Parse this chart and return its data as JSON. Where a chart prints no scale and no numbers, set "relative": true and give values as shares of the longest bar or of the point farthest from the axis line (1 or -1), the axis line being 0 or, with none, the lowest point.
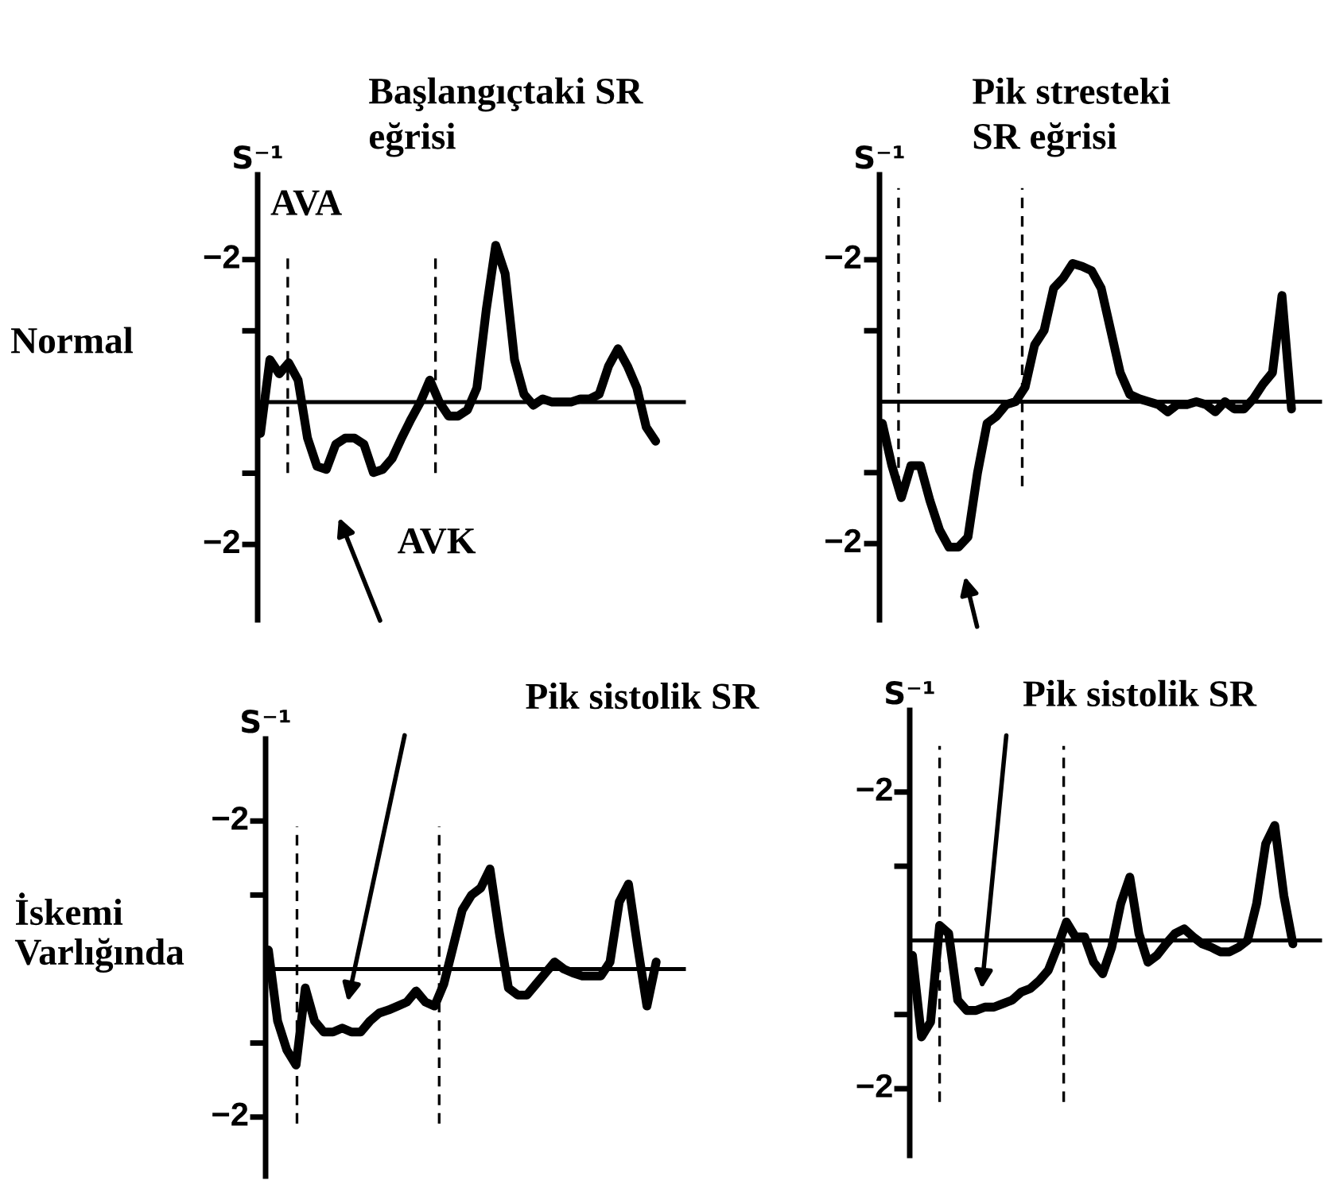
{
  "chart_data": [
    {
      "type": "line",
      "relative": true,
      "title": "Başlangıçtaki SR\neğrisi",
      "ylabel": "S⁻¹",
      "color": "#000000",
      "line_style": "solid",
      "categories": [
        null,
        null,
        null,
        null,
        null,
        null,
        null,
        null,
        null,
        null,
        null,
        null,
        null,
        null,
        null,
        null,
        null,
        null,
        null,
        null,
        null,
        null,
        null,
        null,
        null,
        null,
        null,
        null,
        null,
        null,
        null,
        null,
        null,
        null,
        null,
        null,
        null,
        null,
        null,
        null,
        null,
        null,
        null
      ],
      "values": [
        -0.2,
        0.27,
        0.18,
        0.25,
        0.14,
        -0.23,
        -0.41,
        -0.43,
        -0.27,
        -0.23,
        -0.23,
        -0.27,
        -0.45,
        -0.43,
        -0.36,
        -0.23,
        -0.11,
        0,
        0.14,
        0,
        -0.09,
        -0.09,
        -0.05,
        0.09,
        0.59,
        1,
        0.82,
        0.27,
        0.05,
        -0.02,
        0.02,
        0,
        0,
        0,
        0.02,
        0.02,
        0.05,
        0.23,
        0.34,
        0.23,
        0.09,
        -0.16,
        -0.25
      ],
      "annotations": [
        "−2",
        "−2",
        "AVA",
        "AVK",
        "Normal"
      ]
    },
    {
      "type": "line",
      "relative": true,
      "title": "Pik stresteki\nSR eğrisi",
      "ylabel": "S⁻¹",
      "color": "#000000",
      "line_style": "solid",
      "categories": [
        null,
        null,
        null,
        null,
        null,
        null,
        null,
        null,
        null,
        null,
        null,
        null,
        null,
        null,
        null,
        null,
        null,
        null,
        null,
        null,
        null,
        null,
        null,
        null,
        null,
        null,
        null,
        null,
        null,
        null,
        null,
        null,
        null,
        null,
        null,
        null,
        null,
        null,
        null,
        null,
        null,
        null,
        null,
        null
      ],
      "values": [
        -0.15,
        -0.44,
        -0.66,
        -0.44,
        -0.44,
        -0.68,
        -0.88,
        -1,
        -1,
        -0.93,
        -0.49,
        -0.15,
        -0.1,
        -0.02,
        0,
        0.1,
        0.39,
        0.49,
        0.78,
        0.85,
        0.95,
        0.93,
        0.9,
        0.78,
        0.49,
        0.2,
        0.05,
        0.02,
        0,
        -0.02,
        -0.07,
        -0.02,
        -0.02,
        0,
        -0.02,
        -0.07,
        0,
        -0.05,
        -0.05,
        0.02,
        0.12,
        0.2,
        0.73,
        -0.05
      ],
      "annotations": [
        "−2",
        "−2"
      ]
    },
    {
      "type": "line",
      "relative": true,
      "ylabel": "S⁻¹",
      "color": "#000000",
      "line_style": "solid",
      "categories": [
        null,
        null,
        null,
        null,
        null,
        null,
        null,
        null,
        null,
        null,
        null,
        null,
        null,
        null,
        null,
        null,
        null,
        null,
        null,
        null,
        null,
        null,
        null,
        null,
        null,
        null,
        null,
        null,
        null,
        null,
        null,
        null,
        null,
        null,
        null,
        null,
        null,
        null,
        null,
        null,
        null,
        null,
        null
      ],
      "values": [
        0.19,
        -0.52,
        -0.81,
        -0.96,
        -0.19,
        -0.52,
        -0.63,
        -0.63,
        -0.59,
        -0.63,
        -0.63,
        -0.52,
        -0.44,
        -0.41,
        -0.37,
        -0.33,
        -0.22,
        -0.33,
        -0.37,
        -0.15,
        0.22,
        0.59,
        0.74,
        0.81,
        1,
        0.37,
        -0.19,
        -0.26,
        -0.26,
        -0.15,
        -0.04,
        0.07,
        0,
        -0.04,
        -0.07,
        -0.07,
        -0.07,
        0.07,
        0.67,
        0.85,
        0.22,
        -0.37,
        0.07
      ],
      "annotations": [
        "−2",
        "−2",
        "İskemi\nVarlığında",
        "Pik sistolik SR"
      ]
    },
    {
      "type": "line",
      "relative": true,
      "ylabel": "S⁻¹",
      "color": "#000000",
      "line_style": "solid",
      "categories": [
        null,
        null,
        null,
        null,
        null,
        null,
        null,
        null,
        null,
        null,
        null,
        null,
        null,
        null,
        null,
        null,
        null,
        null,
        null,
        null,
        null,
        null,
        null,
        null,
        null,
        null,
        null,
        null,
        null,
        null,
        null,
        null,
        null,
        null,
        null,
        null,
        null,
        null,
        null,
        null,
        null,
        null,
        null
      ],
      "values": [
        -0.13,
        -0.84,
        -0.71,
        0.13,
        0.06,
        -0.52,
        -0.61,
        -0.61,
        -0.58,
        -0.58,
        -0.55,
        -0.52,
        -0.45,
        -0.42,
        -0.35,
        -0.26,
        -0.06,
        0.16,
        0.03,
        0.03,
        -0.19,
        -0.29,
        -0.06,
        0.32,
        0.55,
        0.06,
        -0.19,
        -0.13,
        -0.03,
        0.06,
        0.1,
        0.03,
        -0.03,
        -0.06,
        -0.1,
        -0.1,
        -0.06,
        0,
        0.32,
        0.84,
        1,
        0.39,
        -0.03
      ],
      "annotations": [
        "−2",
        "−2",
        "Pik sistolik SR"
      ]
    }
  ]
}
